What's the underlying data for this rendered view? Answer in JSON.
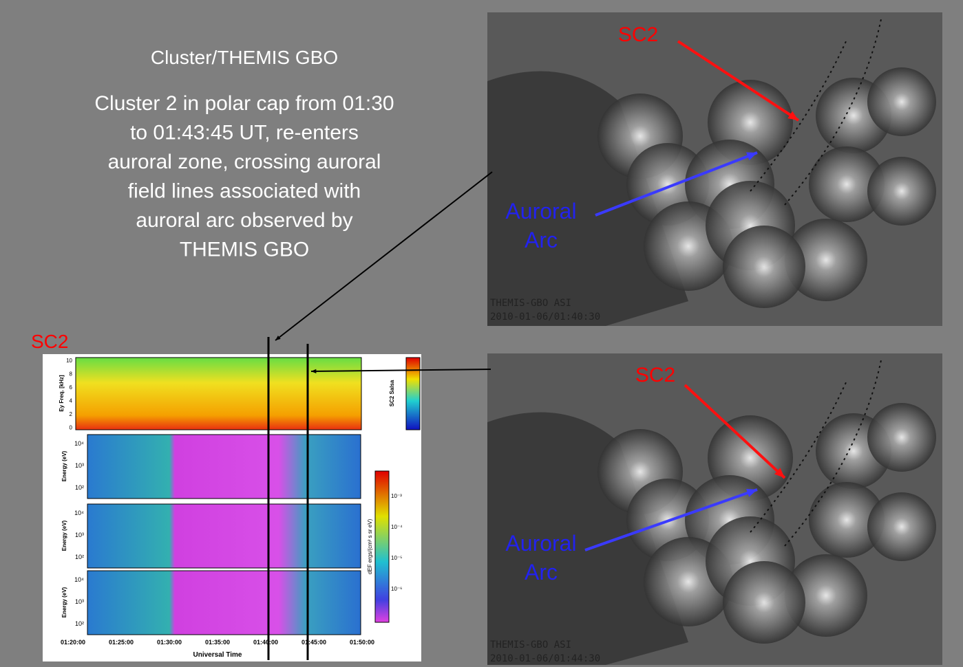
{
  "slide": {
    "title": "Cluster/THEMIS GBO",
    "body": [
      "Cluster 2 in polar cap from 01:30",
      "to 01:43:45 UT, re-enters",
      "auroral zone, crossing auroral",
      "field lines associated with",
      "auroral arc observed by",
      "THEMIS GBO"
    ]
  },
  "spectrogram": {
    "label": "SC2",
    "top_panel": {
      "ylabel": "Ey Freq. [kHz]",
      "yticks": [
        "10",
        "8",
        "6",
        "4",
        "2",
        "0"
      ],
      "colorbar_label": "SC2 Salsa"
    },
    "energy_panels": [
      {
        "ylabel": "Energy (eV)",
        "yticks": [
          "10⁴",
          "10³",
          "10²"
        ]
      },
      {
        "ylabel": "Energy (eV)",
        "yticks": [
          "10⁴",
          "10³",
          "10²"
        ]
      },
      {
        "ylabel": "Energy (eV)",
        "yticks": [
          "10⁴",
          "10³",
          "10²"
        ]
      }
    ],
    "colorbar": {
      "label": "dEF ergs/(cm² s sr eV)",
      "ticks": [
        "10⁻³",
        "10⁻⁴",
        "10⁻⁵",
        "10⁻⁶"
      ]
    },
    "xticks": [
      "01:20:00",
      "01:25:00",
      "01:30:00",
      "01:35:00",
      "01:40:00",
      "01:45:00",
      "01:50:00"
    ],
    "xlabel": "Universal Time"
  },
  "maps": [
    {
      "sc2": "SC2",
      "arc": [
        "Auroral",
        "Arc"
      ],
      "stamp": [
        "THEMIS-GBO ASI",
        "2010-01-06/01:40:30"
      ]
    },
    {
      "sc2": "SC2",
      "arc": [
        "Auroral",
        "Arc"
      ],
      "stamp": [
        "THEMIS-GBO ASI",
        "2010-01-06/01:44:30"
      ]
    }
  ]
}
